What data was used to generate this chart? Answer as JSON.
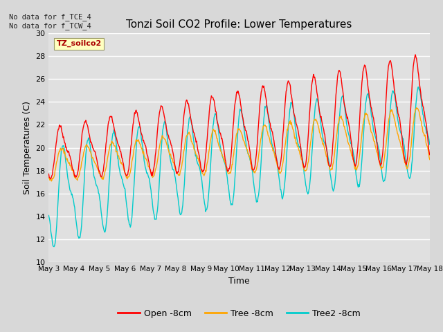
{
  "title": "Tonzi Soil CO2 Profile: Lower Temperatures",
  "xlabel": "Time",
  "ylabel": "Soil Temperatures (C)",
  "ylim": [
    10,
    30
  ],
  "yticks": [
    10,
    12,
    14,
    16,
    18,
    20,
    22,
    24,
    26,
    28,
    30
  ],
  "xtick_labels": [
    "May 3",
    "May 4",
    "May 5",
    "May 6",
    "May 7",
    "May 8",
    "May 9",
    "May 10",
    "May 11",
    "May 12",
    "May 13",
    "May 14",
    "May 15",
    "May 16",
    "May 17",
    "May 18"
  ],
  "annotation_text": "No data for f_TCE_4\nNo data for f_TCW_4",
  "legend_box_label": "TZ_soilco2",
  "colors": {
    "open": "#FF0000",
    "tree": "#FFA500",
    "tree2": "#00CCCC"
  },
  "legend_labels": [
    "Open -8cm",
    "Tree -8cm",
    "Tree2 -8cm"
  ],
  "bg_color": "#E0E0E0",
  "grid_color": "#FFFFFF",
  "fig_bg": "#D8D8D8"
}
